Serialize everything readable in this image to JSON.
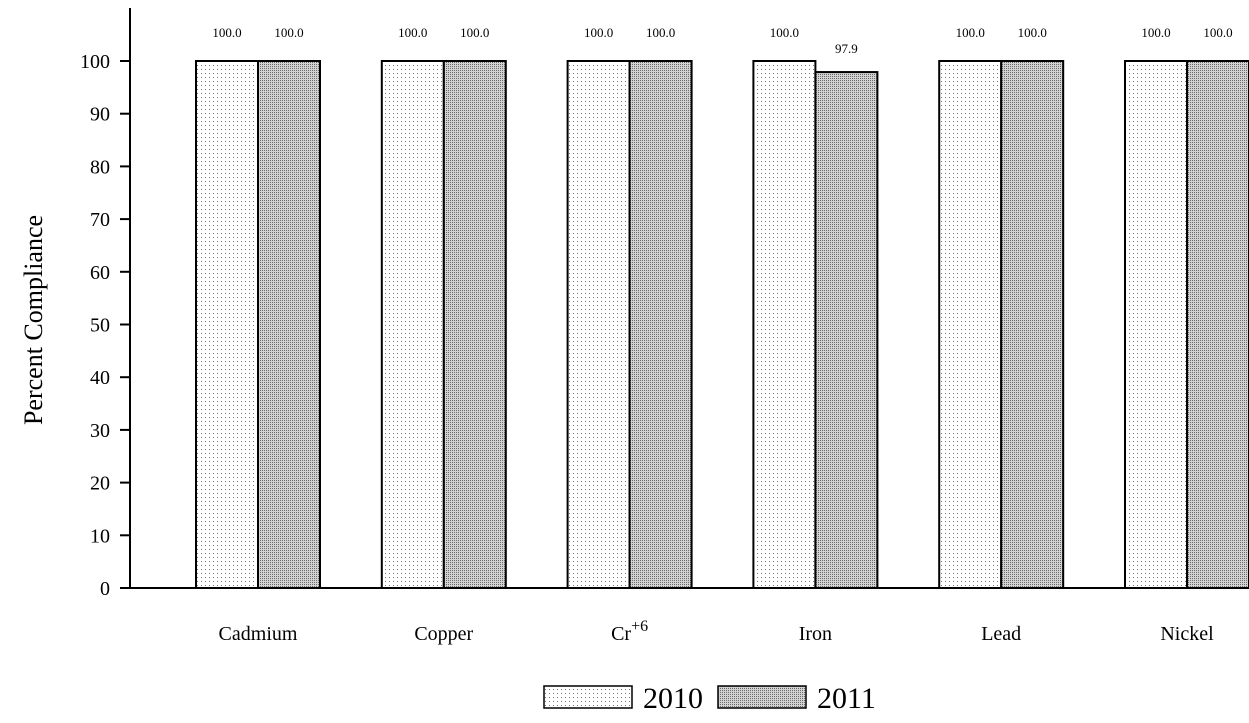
{
  "chart_data": {
    "type": "bar",
    "categories": [
      "Cadmium",
      "Copper",
      "Cr+6",
      "Iron",
      "Lead",
      "Nickel"
    ],
    "category_display": [
      {
        "base": "Cadmium",
        "sup": ""
      },
      {
        "base": "Copper",
        "sup": ""
      },
      {
        "base": "Cr",
        "sup": "+6"
      },
      {
        "base": "Iron",
        "sup": ""
      },
      {
        "base": "Lead",
        "sup": ""
      },
      {
        "base": "Nickel",
        "sup": ""
      }
    ],
    "series": [
      {
        "name": "2010",
        "values": [
          100.0,
          100.0,
          100.0,
          100.0,
          100.0,
          100.0
        ],
        "pattern": "light-dots"
      },
      {
        "name": "2011",
        "values": [
          100.0,
          100.0,
          100.0,
          97.9,
          100.0,
          100.0
        ],
        "pattern": "dense-dots"
      }
    ],
    "data_labels": [
      [
        "100.0",
        "100.0",
        "100.0",
        "100.0",
        "100.0",
        "100.0"
      ],
      [
        "100.0",
        "100.0",
        "100.0",
        "97.9",
        "100.0",
        "100.0"
      ]
    ],
    "title": "",
    "xlabel": "",
    "ylabel": "Percent Compliance",
    "ylim": [
      0,
      100
    ],
    "yticks": [
      0,
      10,
      20,
      30,
      40,
      50,
      60,
      70,
      80,
      90,
      100
    ],
    "grid": false,
    "legend_position": "bottom-center",
    "colors": {
      "bar_border": "#000000",
      "bar_fill_light": "#f4f4f4",
      "bar_fill_dense": "#bdbdbd",
      "dot_color": "#555555"
    }
  }
}
